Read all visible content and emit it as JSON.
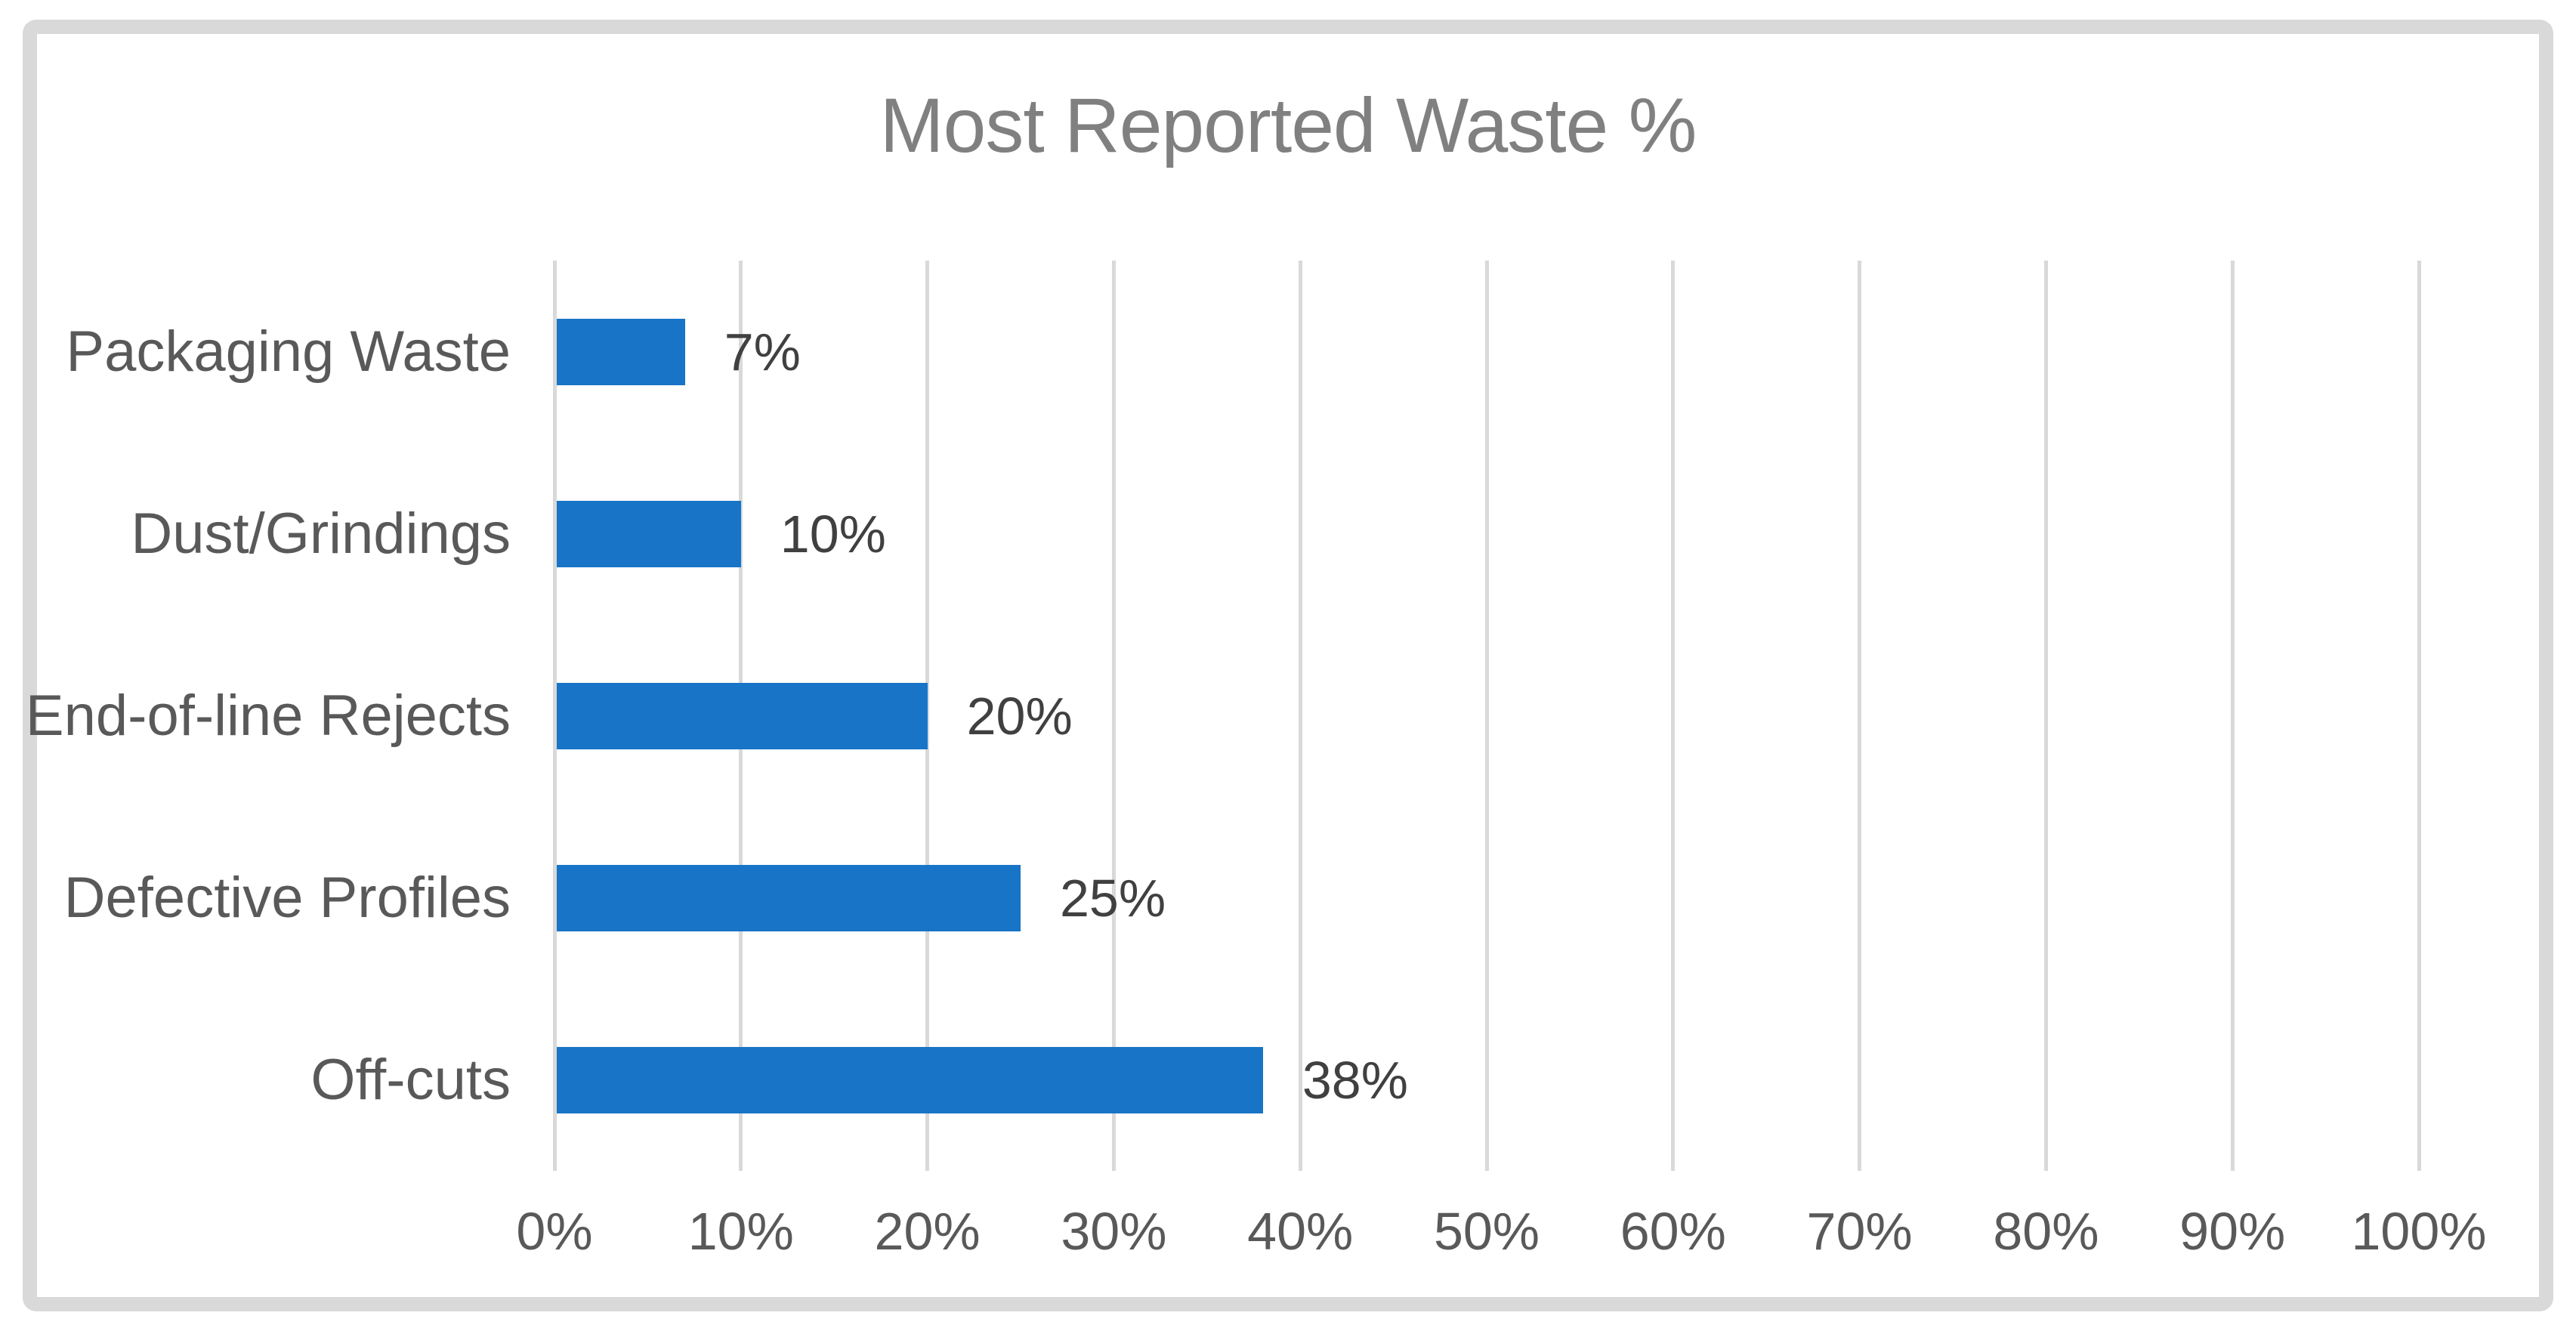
{
  "chart_data": {
    "type": "bar",
    "orientation": "horizontal",
    "title": "Most Reported Waste %",
    "categories": [
      "Packaging Waste",
      "Dust/Grindings",
      "End-of-line Rejects",
      "Defective Profiles",
      "Off-cuts"
    ],
    "values": [
      7,
      10,
      20,
      25,
      38
    ],
    "data_labels": [
      "7%",
      "10%",
      "20%",
      "25%",
      "38%"
    ],
    "xlabel": "",
    "ylabel": "",
    "xlim": [
      0,
      100
    ],
    "x_ticks": [
      0,
      10,
      20,
      30,
      40,
      50,
      60,
      70,
      80,
      90,
      100
    ],
    "x_tick_labels": [
      "0%",
      "10%",
      "20%",
      "30%",
      "40%",
      "50%",
      "60%",
      "70%",
      "80%",
      "90%",
      "100%"
    ],
    "grid": "vertical-gridlines-on",
    "legend": "none",
    "colors": {
      "bar": "#1874c6",
      "gridline": "#d9d9d9",
      "frame_border": "#d9d9d9",
      "title_text": "#808080",
      "axis_text": "#595959",
      "data_label_text": "#404040",
      "background": "#ffffff"
    }
  }
}
